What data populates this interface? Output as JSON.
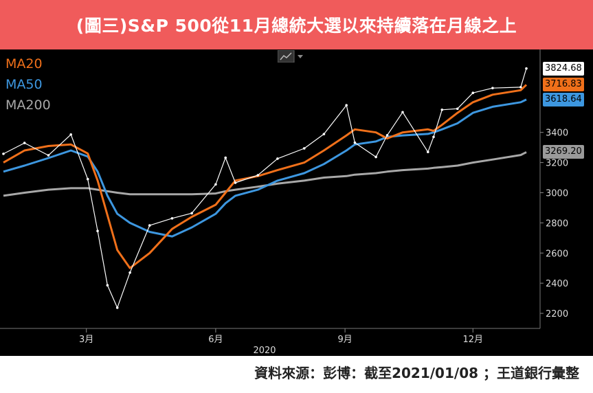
{
  "title": "(圖三)S&P 500從11月總統大選以來持續落在月線之上",
  "source": "資料來源：彭博：截至2021/01/08 ；王道銀行彙整",
  "colors": {
    "title_bg": "#f05b5b",
    "price": "#ffffff",
    "ma20": "#f0701a",
    "ma50": "#3d97e0",
    "ma200": "#a8a8a8"
  },
  "chart_data": {
    "type": "line",
    "title": "(圖三)S&P 500從11月總統大選以來持續落在月線之上",
    "xlabel": "2020",
    "ylabel": "",
    "ylim": [
      2100,
      3950
    ],
    "yticks": [
      2200,
      2400,
      2600,
      2800,
      3000,
      3200,
      3400
    ],
    "x": [
      "2020-01-02",
      "2020-01-17",
      "2020-02-03",
      "2020-02-19",
      "2020-03-02",
      "2020-03-09",
      "2020-03-16",
      "2020-03-23",
      "2020-04-01",
      "2020-04-15",
      "2020-05-01",
      "2020-05-15",
      "2020-06-01",
      "2020-06-08",
      "2020-06-15",
      "2020-07-01",
      "2020-07-15",
      "2020-08-03",
      "2020-08-17",
      "2020-09-02",
      "2020-09-08",
      "2020-09-23",
      "2020-10-01",
      "2020-10-12",
      "2020-10-30",
      "2020-11-03",
      "2020-11-09",
      "2020-11-20",
      "2020-12-01",
      "2020-12-15",
      "2021-01-04",
      "2021-01-08"
    ],
    "x_ticks": [
      {
        "label": "3月",
        "date": "2020-03-01"
      },
      {
        "label": "6月",
        "date": "2020-06-01"
      },
      {
        "label": "9月",
        "date": "2020-09-01"
      },
      {
        "label": "12月",
        "date": "2020-12-01"
      }
    ],
    "series": [
      {
        "name": "",
        "values": [
          3258,
          3330,
          3248,
          3386,
          3090,
          2746,
          2386,
          2237,
          2470,
          2783,
          2830,
          2864,
          3055,
          3232,
          3066,
          3116,
          3226,
          3294,
          3389,
          3580,
          3332,
          3237,
          3381,
          3534,
          3270,
          3370,
          3550,
          3557,
          3662,
          3694,
          3700,
          3824
        ]
      },
      {
        "name": "MA20",
        "values": [
          3200,
          3280,
          3310,
          3320,
          3260,
          3080,
          2850,
          2620,
          2500,
          2600,
          2760,
          2840,
          2920,
          3000,
          3080,
          3110,
          3150,
          3200,
          3280,
          3380,
          3420,
          3400,
          3360,
          3400,
          3420,
          3410,
          3450,
          3530,
          3600,
          3650,
          3680,
          3716
        ]
      },
      {
        "name": "MA50",
        "values": [
          3140,
          3180,
          3230,
          3280,
          3240,
          3140,
          2980,
          2860,
          2800,
          2740,
          2710,
          2770,
          2860,
          2930,
          2980,
          3020,
          3080,
          3130,
          3190,
          3280,
          3320,
          3340,
          3370,
          3380,
          3390,
          3400,
          3420,
          3460,
          3530,
          3570,
          3600,
          3618
        ]
      },
      {
        "name": "MA200",
        "values": [
          2980,
          3000,
          3020,
          3030,
          3030,
          3020,
          3010,
          3000,
          2990,
          2990,
          2990,
          2990,
          2995,
          3010,
          3020,
          3040,
          3060,
          3080,
          3100,
          3110,
          3120,
          3130,
          3140,
          3150,
          3160,
          3165,
          3170,
          3180,
          3200,
          3220,
          3250,
          3269
        ]
      }
    ],
    "last_values": [
      {
        "name": "price",
        "label": "3824.68"
      },
      {
        "name": "MA20",
        "label": "3716.83"
      },
      {
        "name": "MA50",
        "label": "3618.64"
      },
      {
        "name": "MA200",
        "label": "3269.20"
      }
    ],
    "legend": [
      "MA20",
      "MA50",
      "MA200"
    ],
    "legend_position": "top-left",
    "grid": false
  }
}
